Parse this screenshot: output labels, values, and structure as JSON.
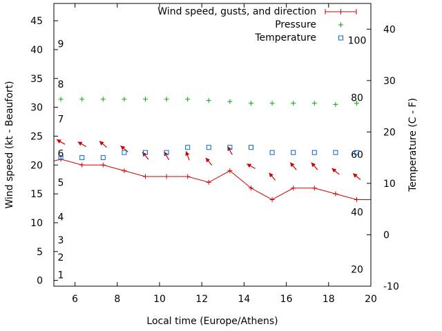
{
  "chart_data": {
    "type": "line",
    "title": "",
    "xlabel": "Local time (Europe/Athens)",
    "ylabel": "Wind speed (kt - Beaufort)",
    "y2label": "Temperature (C - F)",
    "xlim": [
      5,
      20
    ],
    "ylim": [
      -1,
      48
    ],
    "y2lim": [
      -10,
      45
    ],
    "xticks": [
      6,
      8,
      10,
      12,
      14,
      16,
      18,
      20
    ],
    "yticks": [
      0,
      5,
      10,
      15,
      20,
      25,
      30,
      35,
      40,
      45
    ],
    "y2ticks": [
      -10,
      0,
      10,
      20,
      30,
      40
    ],
    "beaufort_labels": [
      {
        "label": "1",
        "kt": 1
      },
      {
        "label": "2",
        "kt": 4
      },
      {
        "label": "3",
        "kt": 7
      },
      {
        "label": "4",
        "kt": 11
      },
      {
        "label": "5",
        "kt": 17
      },
      {
        "label": "6",
        "kt": 22
      },
      {
        "label": "7",
        "kt": 28
      },
      {
        "label": "8",
        "kt": 34
      },
      {
        "label": "9",
        "kt": 41
      }
    ],
    "fahrenheit_labels": [
      {
        "label": "20",
        "celsius": -6.7
      },
      {
        "label": "40",
        "celsius": 4.4
      },
      {
        "label": "60",
        "celsius": 15.6
      },
      {
        "label": "80",
        "celsius": 26.7
      },
      {
        "label": "100",
        "celsius": 37.8
      }
    ],
    "legend_position": "top-right",
    "series": [
      {
        "name": "Wind speed, gusts, and direction",
        "kind": "line-with-arrows",
        "axis": "y",
        "color": "#cc0000",
        "x": [
          5,
          5.33,
          6.33,
          7.33,
          8.33,
          9.33,
          10.33,
          11.33,
          12.33,
          13.33,
          14.33,
          15.33,
          16.33,
          17.33,
          18.33,
          19.33,
          20
        ],
        "values": [
          20.7,
          21,
          20,
          20,
          19,
          18,
          18,
          18,
          17,
          19,
          16,
          14,
          16,
          16,
          15,
          14,
          14
        ],
        "arrows": [
          {
            "x": 5.33,
            "kt": 24,
            "dir_deg": 300
          },
          {
            "x": 6.33,
            "kt": 23.6,
            "dir_deg": 300
          },
          {
            "x": 7.33,
            "kt": 23.6,
            "dir_deg": 310
          },
          {
            "x": 8.33,
            "kt": 22.8,
            "dir_deg": 310
          },
          {
            "x": 9.33,
            "kt": 21.6,
            "dir_deg": 320
          },
          {
            "x": 10.33,
            "kt": 21.6,
            "dir_deg": 330
          },
          {
            "x": 11.33,
            "kt": 21.6,
            "dir_deg": 340
          },
          {
            "x": 12.33,
            "kt": 20.6,
            "dir_deg": 320
          },
          {
            "x": 13.33,
            "kt": 22.5,
            "dir_deg": 330
          },
          {
            "x": 14.33,
            "kt": 19.8,
            "dir_deg": 300
          },
          {
            "x": 15.33,
            "kt": 18,
            "dir_deg": 320
          },
          {
            "x": 16.33,
            "kt": 19.8,
            "dir_deg": 320
          },
          {
            "x": 17.33,
            "kt": 19.8,
            "dir_deg": 320
          },
          {
            "x": 18.33,
            "kt": 18.9,
            "dir_deg": 310
          },
          {
            "x": 19.33,
            "kt": 18,
            "dir_deg": 310
          }
        ]
      },
      {
        "name": "Pressure",
        "kind": "points-plus",
        "axis": "y",
        "color": "#00aa00",
        "x": [
          5.33,
          6.33,
          7.33,
          8.33,
          9.33,
          10.33,
          11.33,
          12.33,
          13.33,
          14.33,
          15.33,
          16.33,
          17.33,
          18.33,
          19.33
        ],
        "values": [
          31.4,
          31.4,
          31.4,
          31.4,
          31.4,
          31.4,
          31.4,
          31.2,
          31.0,
          30.7,
          30.7,
          30.7,
          30.7,
          30.5,
          30.7
        ]
      },
      {
        "name": "Temperature",
        "kind": "points-square",
        "axis": "y2",
        "color": "#0066cc",
        "x": [
          5.33,
          6.33,
          7.33,
          8.33,
          9.33,
          10.33,
          11.33,
          12.33,
          13.33,
          14.33,
          15.33,
          16.33,
          17.33,
          18.33,
          19.33
        ],
        "values": [
          15,
          15,
          15,
          16,
          16,
          16,
          17,
          17,
          17,
          17,
          16,
          16,
          16,
          16,
          16
        ]
      }
    ]
  }
}
